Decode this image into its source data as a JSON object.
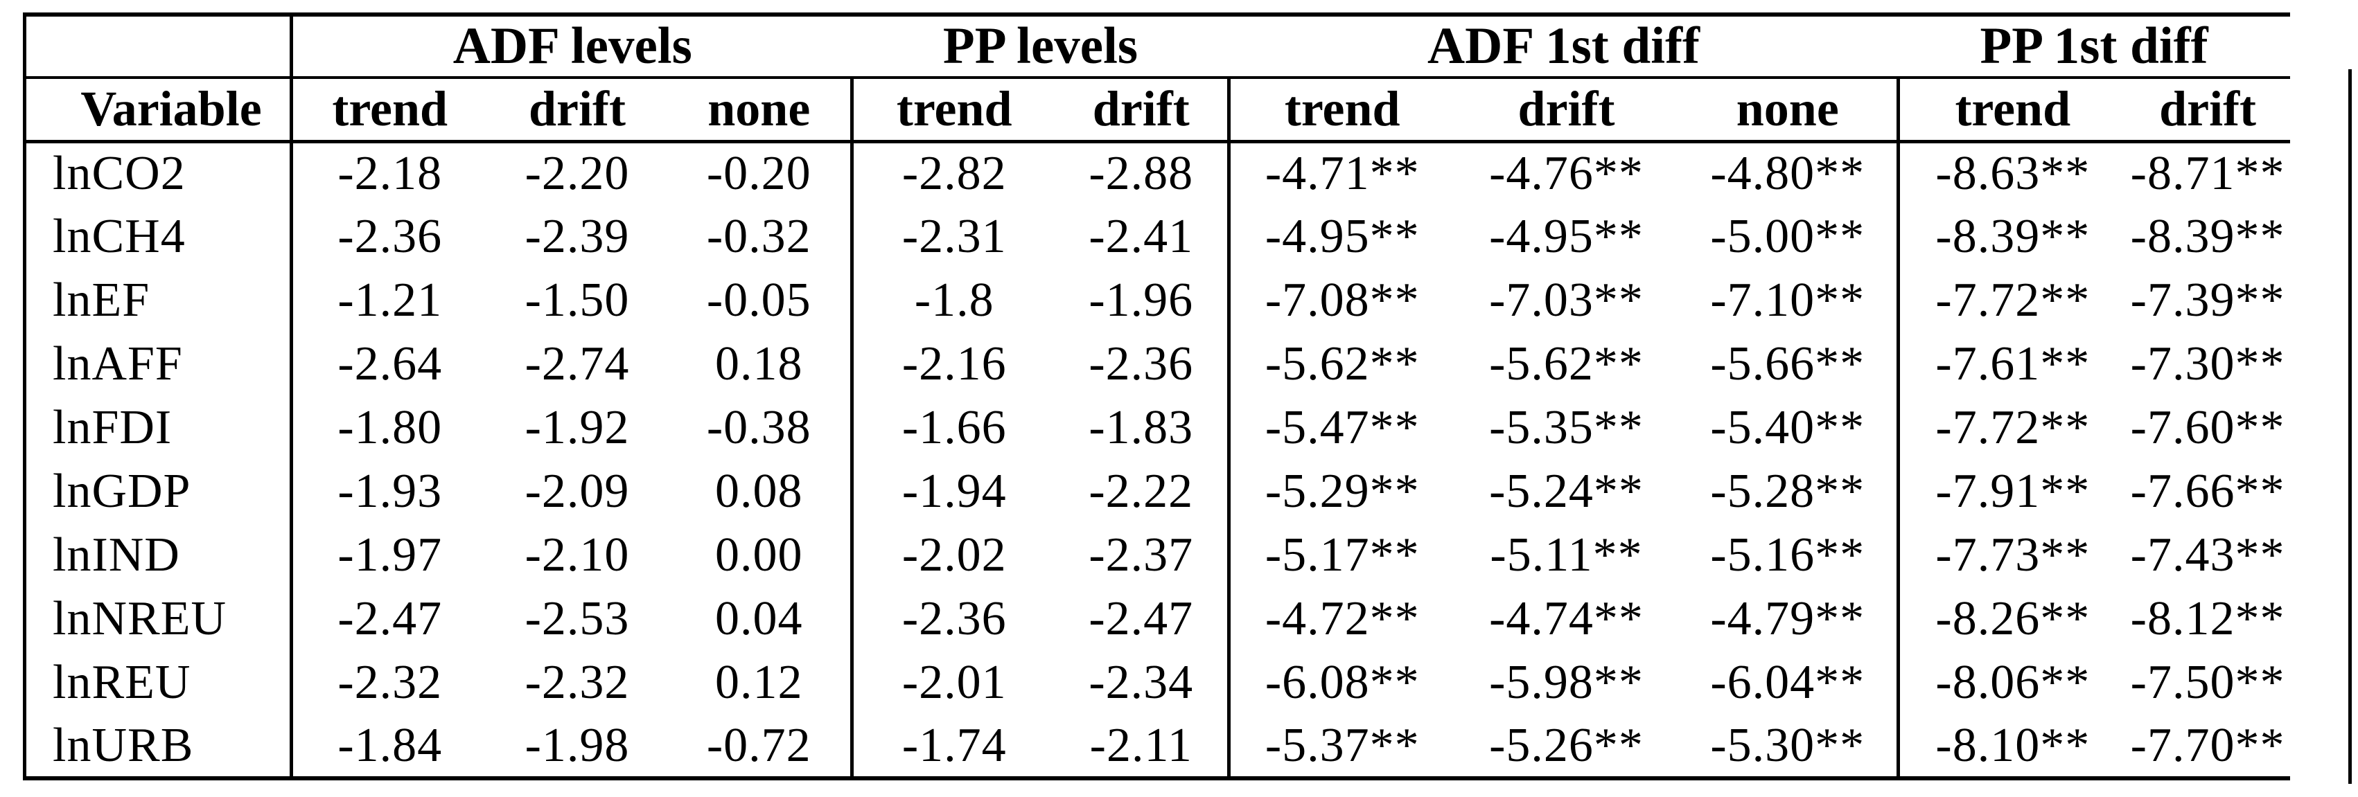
{
  "table": {
    "group_headers": [
      {
        "label": "",
        "span": 1
      },
      {
        "label": "ADF levels",
        "span": 3
      },
      {
        "label": "PP levels",
        "span": 2
      },
      {
        "label": "ADF 1st diff",
        "span": 3
      },
      {
        "label": "PP 1st diff",
        "span": 2
      }
    ],
    "column_headers": [
      "Variable",
      "trend",
      "drift",
      "none",
      "trend",
      "drift",
      "trend",
      "drift",
      "none",
      "trend",
      "drift"
    ],
    "rows": [
      [
        "lnCO2",
        "-2.18",
        "-2.20",
        "-0.20",
        "-2.82",
        "-2.88",
        "-4.71**",
        "-4.76**",
        "-4.80**",
        "-8.63**",
        "-8.71**"
      ],
      [
        "lnCH4",
        "-2.36",
        "-2.39",
        "-0.32",
        "-2.31",
        "-2.41",
        "-4.95**",
        "-4.95**",
        "-5.00**",
        "-8.39**",
        "-8.39**"
      ],
      [
        "lnEF",
        "-1.21",
        "-1.50",
        "-0.05",
        "-1.8",
        "-1.96",
        "-7.08**",
        "-7.03**",
        "-7.10**",
        "-7.72**",
        "-7.39**"
      ],
      [
        "lnAFF",
        "-2.64",
        "-2.74",
        "0.18",
        "-2.16",
        "-2.36",
        "-5.62**",
        "-5.62**",
        "-5.66**",
        "-7.61**",
        "-7.30**"
      ],
      [
        "lnFDI",
        "-1.80",
        "-1.92",
        "-0.38",
        "-1.66",
        "-1.83",
        "-5.47**",
        "-5.35**",
        "-5.40**",
        "-7.72**",
        "-7.60**"
      ],
      [
        "lnGDP",
        "-1.93",
        "-2.09",
        "0.08",
        "-1.94",
        "-2.22",
        "-5.29**",
        "-5.24**",
        "-5.28**",
        "-7.91**",
        "-7.66**"
      ],
      [
        "lnIND",
        "-1.97",
        "-2.10",
        "0.00",
        "-2.02",
        "-2.37",
        "-5.17**",
        "-5.11**",
        "-5.16**",
        "-7.73**",
        "-7.43**"
      ],
      [
        "lnNREU",
        "-2.47",
        "-2.53",
        "0.04",
        "-2.36",
        "-2.47",
        "-4.72**",
        "-4.74**",
        "-4.79**",
        "-8.26**",
        "-8.12**"
      ],
      [
        "lnREU",
        "-2.32",
        "-2.32",
        "0.12",
        "-2.01",
        "-2.34",
        "-6.08**",
        "-5.98**",
        "-6.04**",
        "-8.06**",
        "-7.50**"
      ],
      [
        "lnURB",
        "-1.84",
        "-1.98",
        "-0.72",
        "-1.74",
        "-2.11",
        "-5.37**",
        "-5.26**",
        "-5.30**",
        "-8.10**",
        "-7.70**"
      ]
    ]
  }
}
